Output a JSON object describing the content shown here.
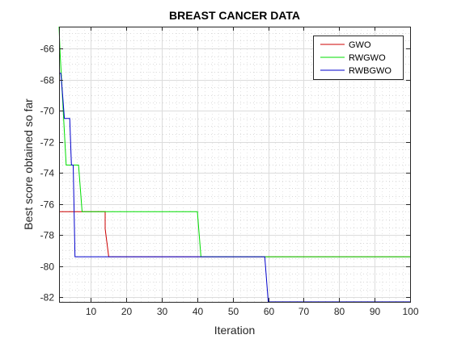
{
  "chart_data": {
    "type": "line",
    "title": "BREAST CANCER DATA",
    "xlabel": "Iteration",
    "ylabel": "Best score obtained so far",
    "xlim": [
      1,
      100
    ],
    "ylim": [
      -82.3,
      -64.6
    ],
    "xticks": [
      10,
      20,
      30,
      40,
      50,
      60,
      70,
      80,
      90,
      100
    ],
    "yticks": [
      -82,
      -80,
      -78,
      -76,
      -74,
      -72,
      -70,
      -68,
      -66
    ],
    "xtick_labels": [
      "10",
      "20",
      "30",
      "40",
      "50",
      "60",
      "70",
      "80",
      "90",
      "100"
    ],
    "ytick_labels": [
      "-82",
      "-80",
      "-78",
      "-76",
      "-74",
      "-72",
      "-70",
      "-68",
      "-66"
    ],
    "minor_yticks": [
      -82.5,
      -81.5,
      -81,
      -80.5,
      -79.5,
      -79,
      -78.5,
      -77.5,
      -77,
      -76.5,
      -75.5,
      -75,
      -74.5,
      -73.5,
      -73,
      -72.5,
      -71.5,
      -71,
      -70.5,
      -69.5,
      -69,
      -68.5,
      -67.5,
      -67,
      -66.5,
      -65.5,
      -65
    ],
    "minor_xticks": [
      2,
      4,
      6,
      8,
      12,
      14,
      16,
      18,
      22,
      24,
      26,
      28,
      32,
      34,
      36,
      38,
      42,
      44,
      46,
      48,
      52,
      54,
      56,
      58,
      62,
      64,
      66,
      68,
      72,
      74,
      76,
      78,
      82,
      84,
      86,
      88,
      92,
      94,
      96,
      98
    ],
    "grid": true,
    "legend_position": "top-right",
    "series": [
      {
        "name": "GWO",
        "color": "#cc0000",
        "x": [
          1,
          2,
          14,
          14,
          15,
          100
        ],
        "y": [
          -76.5,
          -76.5,
          -76.5,
          -77.6,
          -79.4,
          -79.4
        ]
      },
      {
        "name": "RWGWO",
        "color": "#00dd00",
        "x": [
          1,
          1.3,
          3,
          4,
          6.5,
          7.5,
          40,
          41,
          100
        ],
        "y": [
          -64.6,
          -66.3,
          -73.5,
          -73.5,
          -73.5,
          -76.5,
          -76.5,
          -79.4,
          -79.4
        ]
      },
      {
        "name": "RWBGWO",
        "color": "#0000cc",
        "x": [
          1,
          1.5,
          2,
          2.5,
          3,
          4,
          4.5,
          5,
          5.5,
          59,
          60,
          100
        ],
        "y": [
          -67.6,
          -67.6,
          -69,
          -70.5,
          -70.5,
          -70.5,
          -73.5,
          -73.5,
          -79.4,
          -79.4,
          -82.3,
          -82.3
        ]
      }
    ]
  }
}
